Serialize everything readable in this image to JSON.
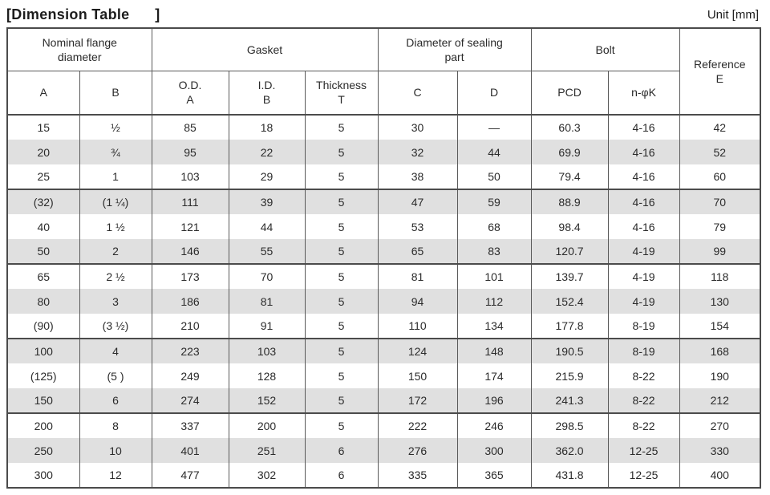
{
  "page": {
    "title": "[Dimension Table      ]",
    "unit": "Unit [mm]"
  },
  "colors": {
    "text": "#2b2b2b",
    "border_dark": "#4b4b4b",
    "border_thin": "#5a5a5a",
    "row_shade": "#e0e0e0"
  },
  "table": {
    "groups": [
      {
        "id": "nominal-flange-diameter",
        "label": "Nominal flange\ndiameter",
        "colspan": 2
      },
      {
        "id": "gasket",
        "label": "Gasket",
        "colspan": 3
      },
      {
        "id": "diameter-of-sealing-part",
        "label": "Diameter of sealing\npart",
        "colspan": 2
      },
      {
        "id": "bolt",
        "label": "Bolt",
        "colspan": 2
      },
      {
        "id": "reference-e",
        "label": "Reference\nE",
        "colspan": 1,
        "rowspan": 2
      }
    ],
    "subheaders": [
      "A",
      "B",
      "O.D.\nA",
      "I.D.\nB",
      "Thickness\nT",
      "C",
      "D",
      "PCD",
      "n-φK"
    ],
    "column_keys": [
      "a",
      "b",
      "gasket-od-a",
      "gasket-id-b",
      "thickness-t",
      "c",
      "d",
      "pcd",
      "n-phik",
      "reference-e"
    ],
    "rows": [
      [
        "15",
        "½",
        "85",
        "18",
        "5",
        "30",
        "—",
        "60.3",
        "4-16",
        "42"
      ],
      [
        "20",
        "¾",
        "95",
        "22",
        "5",
        "32",
        "44",
        "69.9",
        "4-16",
        "52"
      ],
      [
        "25",
        "1",
        "103",
        "29",
        "5",
        "38",
        "50",
        "79.4",
        "4-16",
        "60"
      ],
      [
        "(32)",
        "(1 ¼)",
        "111",
        "39",
        "5",
        "47",
        "59",
        "88.9",
        "4-16",
        "70"
      ],
      [
        "40",
        "1 ½",
        "121",
        "44",
        "5",
        "53",
        "68",
        "98.4",
        "4-16",
        "79"
      ],
      [
        "50",
        "2",
        "146",
        "55",
        "5",
        "65",
        "83",
        "120.7",
        "4-19",
        "99"
      ],
      [
        "65",
        "2 ½",
        "173",
        "70",
        "5",
        "81",
        "101",
        "139.7",
        "4-19",
        "118"
      ],
      [
        "80",
        "3",
        "186",
        "81",
        "5",
        "94",
        "112",
        "152.4",
        "4-19",
        "130"
      ],
      [
        "(90)",
        "(3 ½)",
        "210",
        "91",
        "5",
        "110",
        "134",
        "177.8",
        "8-19",
        "154"
      ],
      [
        "100",
        "4",
        "223",
        "103",
        "5",
        "124",
        "148",
        "190.5",
        "8-19",
        "168"
      ],
      [
        "(125)",
        "(5 )",
        "249",
        "128",
        "5",
        "150",
        "174",
        "215.9",
        "8-22",
        "190"
      ],
      [
        "150",
        "6",
        "274",
        "152",
        "5",
        "172",
        "196",
        "241.3",
        "8-22",
        "212"
      ],
      [
        "200",
        "8",
        "337",
        "200",
        "5",
        "222",
        "246",
        "298.5",
        "8-22",
        "270"
      ],
      [
        "250",
        "10",
        "401",
        "251",
        "6",
        "276",
        "300",
        "362.0",
        "12-25",
        "330"
      ],
      [
        "300",
        "12",
        "477",
        "302",
        "6",
        "335",
        "365",
        "431.8",
        "12-25",
        "400"
      ]
    ]
  }
}
